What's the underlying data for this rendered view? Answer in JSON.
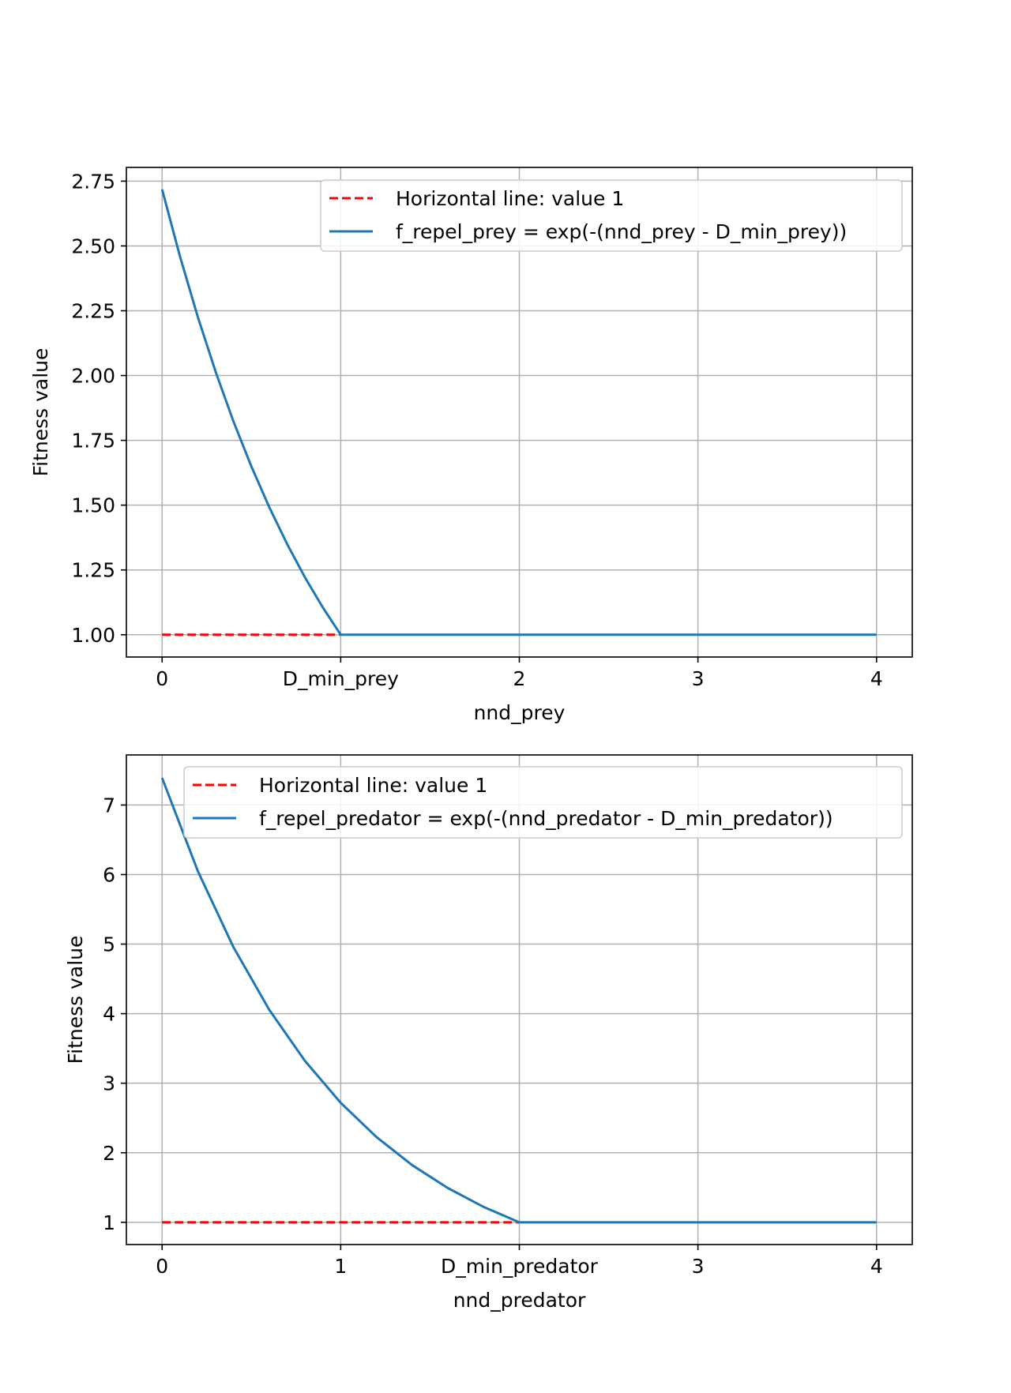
{
  "chart_data": [
    {
      "type": "line",
      "xlabel": "nnd_prey",
      "ylabel": "Fitness value",
      "xlim": [
        -0.2,
        4.2
      ],
      "ylim": [
        0.914,
        2.803
      ],
      "grid": true,
      "legend_position": "top-right",
      "xticks": [
        {
          "value": 0,
          "label": "0"
        },
        {
          "value": 1,
          "label": "D_min_prey"
        },
        {
          "value": 2,
          "label": "2"
        },
        {
          "value": 3,
          "label": "3"
        },
        {
          "value": 4,
          "label": "4"
        }
      ],
      "yticks": [
        {
          "value": 1.0,
          "label": "1.00"
        },
        {
          "value": 1.25,
          "label": "1.25"
        },
        {
          "value": 1.5,
          "label": "1.50"
        },
        {
          "value": 1.75,
          "label": "1.75"
        },
        {
          "value": 2.0,
          "label": "2.00"
        },
        {
          "value": 2.25,
          "label": "2.25"
        },
        {
          "value": 2.5,
          "label": "2.50"
        },
        {
          "value": 2.75,
          "label": "2.75"
        }
      ],
      "series": [
        {
          "name": "Horizontal line: value 1",
          "style": "dashed",
          "color": "#ff0000",
          "x": [
            0,
            1
          ],
          "y": [
            1,
            1
          ]
        },
        {
          "name": "f_repel_prey = exp(-(nnd_prey - D_min_prey))",
          "style": "solid",
          "color": "#1f77b4",
          "x": [
            0,
            0.1,
            0.2,
            0.3,
            0.4,
            0.5,
            0.6,
            0.7,
            0.8,
            0.9,
            1.0,
            4.0
          ],
          "y": [
            2.718,
            2.46,
            2.226,
            2.014,
            1.822,
            1.649,
            1.492,
            1.35,
            1.221,
            1.105,
            1.0,
            1.0
          ]
        }
      ]
    },
    {
      "type": "line",
      "xlabel": "nnd_predator",
      "ylabel": "Fitness value",
      "xlim": [
        -0.2,
        4.2
      ],
      "ylim": [
        0.68,
        7.72
      ],
      "grid": true,
      "legend_position": "top-right",
      "xticks": [
        {
          "value": 0,
          "label": "0"
        },
        {
          "value": 1,
          "label": "1"
        },
        {
          "value": 2,
          "label": "D_min_predator"
        },
        {
          "value": 3,
          "label": "3"
        },
        {
          "value": 4,
          "label": "4"
        }
      ],
      "yticks": [
        {
          "value": 1,
          "label": "1"
        },
        {
          "value": 2,
          "label": "2"
        },
        {
          "value": 3,
          "label": "3"
        },
        {
          "value": 4,
          "label": "4"
        },
        {
          "value": 5,
          "label": "5"
        },
        {
          "value": 6,
          "label": "6"
        },
        {
          "value": 7,
          "label": "7"
        }
      ],
      "series": [
        {
          "name": "Horizontal line: value 1",
          "style": "dashed",
          "color": "#ff0000",
          "x": [
            0,
            2
          ],
          "y": [
            1,
            1
          ]
        },
        {
          "name": "f_repel_predator = exp(-(nnd_predator - D_min_predator))",
          "style": "solid",
          "color": "#1f77b4",
          "x": [
            0,
            0.2,
            0.4,
            0.6,
            0.8,
            1.0,
            1.2,
            1.4,
            1.6,
            1.8,
            2.0,
            4.0
          ],
          "y": [
            7.389,
            6.05,
            4.953,
            4.055,
            3.32,
            2.718,
            2.226,
            1.822,
            1.492,
            1.221,
            1.0,
            1.0
          ]
        }
      ]
    }
  ]
}
